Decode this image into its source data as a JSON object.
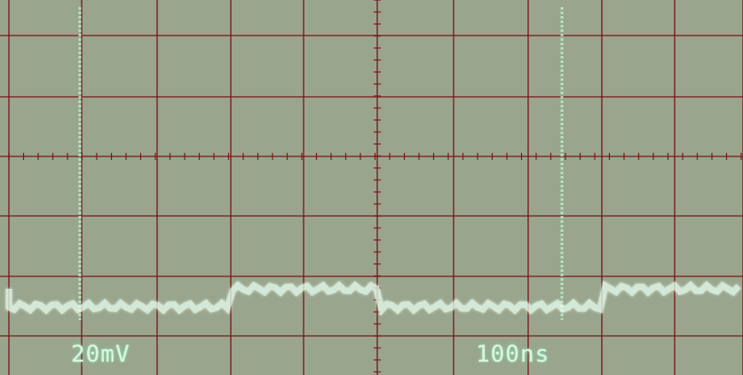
{
  "screen": {
    "volts_per_div": "20mV",
    "time_per_div": "100ns"
  },
  "graticule": {
    "major_divisions_x": 10,
    "major_divisions_y": 8
  },
  "colors": {
    "screen_background": "#9aa58e",
    "graticule": "#7a1a1a",
    "trace": "#b8f3cf",
    "trace_glow": "#5fd79c"
  }
}
